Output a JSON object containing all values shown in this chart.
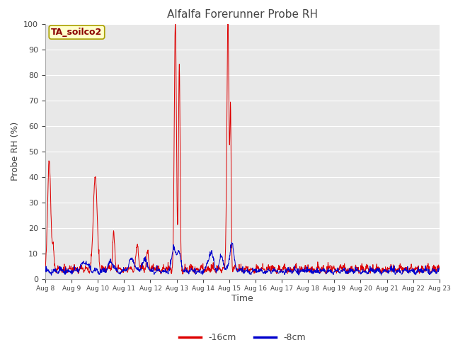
{
  "title": "Alfalfa Forerunner Probe RH",
  "xlabel": "Time",
  "ylabel": "Probe RH (%)",
  "site_label": "TA_soilco2",
  "ylim": [
    0,
    100
  ],
  "yticks": [
    0,
    10,
    20,
    30,
    40,
    50,
    60,
    70,
    80,
    90,
    100
  ],
  "xtick_labels": [
    "Aug 8",
    "Aug 9",
    "Aug 10",
    "Aug 11",
    "Aug 12",
    "Aug 13",
    "Aug 14",
    "Aug 15",
    "Aug 16",
    "Aug 17",
    "Aug 18",
    "Aug 19",
    "Aug 20",
    "Aug 21",
    "Aug 22",
    "Aug 23"
  ],
  "line_red_color": "#dd0000",
  "line_blue_color": "#0000cc",
  "fig_facecolor": "#ffffff",
  "ax_facecolor": "#e8e8e8",
  "legend_labels": [
    "-16cm",
    "-8cm"
  ],
  "legend_colors": [
    "#dd0000",
    "#0000cc"
  ],
  "title_color": "#444444",
  "label_color": "#444444"
}
